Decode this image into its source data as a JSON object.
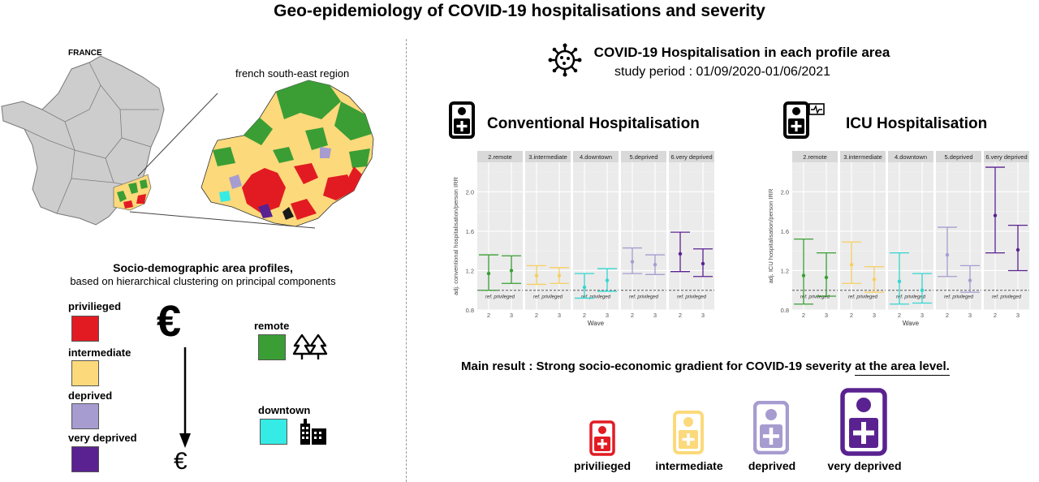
{
  "title": "Geo-epidemiology of COVID-19 hospitalisations and severity",
  "map": {
    "country_label": "FRANCE",
    "region_label": "french south-east region"
  },
  "profiles": {
    "title": "Socio-demographic area profiles,",
    "subtitle": "based on hierarchical clustering on principal components",
    "items": [
      {
        "label": "privilieged",
        "color": "#e21b23"
      },
      {
        "label": "intermediate",
        "color": "#fcd97b"
      },
      {
        "label": "deprived",
        "color": "#a79cd0"
      },
      {
        "label": "very deprived",
        "color": "#5a2290"
      },
      {
        "label": "remote",
        "color": "#3a9e35"
      },
      {
        "label": "downtown",
        "color": "#34ece5"
      }
    ],
    "euro_symbol": "€"
  },
  "hospitalisation": {
    "title": "COVID-19 Hospitalisation in each profile area",
    "period": "study period : 01/09/2020-01/06/2021"
  },
  "chart_data": [
    {
      "type": "scatter",
      "title": "Conventional Hospitalisation",
      "ylabel": "adj. conventional hospitalisation/person IRR",
      "xlabel": "Wave",
      "ylim": [
        0.8,
        2.3
      ],
      "yticks": [
        0.8,
        1.2,
        1.6,
        2.0
      ],
      "reference_line": 1.0,
      "reference_label": "ref. privileged",
      "facets": [
        {
          "name": "2.remote",
          "color": "#3a9e35",
          "points": [
            {
              "x": "2",
              "y": 1.17,
              "low": 1.0,
              "high": 1.36
            },
            {
              "x": "3",
              "y": 1.2,
              "low": 1.07,
              "high": 1.35
            }
          ]
        },
        {
          "name": "3.intermediate",
          "color": "#f7cf5e",
          "points": [
            {
              "x": "2",
              "y": 1.15,
              "low": 1.06,
              "high": 1.25
            },
            {
              "x": "3",
              "y": 1.15,
              "low": 1.07,
              "high": 1.23
            }
          ]
        },
        {
          "name": "4.downtown",
          "color": "#33d6d0",
          "points": [
            {
              "x": "2",
              "y": 1.03,
              "low": 0.92,
              "high": 1.17
            },
            {
              "x": "3",
              "y": 1.1,
              "low": 0.99,
              "high": 1.22
            }
          ]
        },
        {
          "name": "5.deprived",
          "color": "#a79cd0",
          "points": [
            {
              "x": "2",
              "y": 1.29,
              "low": 1.17,
              "high": 1.43
            },
            {
              "x": "3",
              "y": 1.26,
              "low": 1.16,
              "high": 1.36
            }
          ]
        },
        {
          "name": "6.very deprived",
          "color": "#5a2290",
          "points": [
            {
              "x": "2",
              "y": 1.37,
              "low": 1.19,
              "high": 1.59
            },
            {
              "x": "3",
              "y": 1.27,
              "low": 1.14,
              "high": 1.42
            }
          ]
        }
      ]
    },
    {
      "type": "scatter",
      "title": "ICU Hospitalisation",
      "ylabel": "adj. ICU hospitalisation/person IRR",
      "xlabel": "Wave",
      "ylim": [
        0.8,
        2.3
      ],
      "yticks": [
        0.8,
        1.2,
        1.6,
        2.0
      ],
      "reference_line": 1.0,
      "reference_label": "ref. privileged",
      "facets": [
        {
          "name": "2.remote",
          "color": "#3a9e35",
          "points": [
            {
              "x": "2",
              "y": 1.15,
              "low": 0.86,
              "high": 1.52
            },
            {
              "x": "3",
              "y": 1.13,
              "low": 0.94,
              "high": 1.38
            }
          ]
        },
        {
          "name": "3.intermediate",
          "color": "#f7cf5e",
          "points": [
            {
              "x": "2",
              "y": 1.26,
              "low": 1.07,
              "high": 1.49
            },
            {
              "x": "3",
              "y": 1.11,
              "low": 0.98,
              "high": 1.24
            }
          ]
        },
        {
          "name": "4.downtown",
          "color": "#33d6d0",
          "points": [
            {
              "x": "2",
              "y": 1.09,
              "low": 0.86,
              "high": 1.38
            },
            {
              "x": "3",
              "y": 1.0,
              "low": 0.87,
              "high": 1.17
            }
          ]
        },
        {
          "name": "5.deprived",
          "color": "#a79cd0",
          "points": [
            {
              "x": "2",
              "y": 1.36,
              "low": 1.14,
              "high": 1.64
            },
            {
              "x": "3",
              "y": 1.1,
              "low": 0.98,
              "high": 1.25
            }
          ]
        },
        {
          "name": "6.very deprived",
          "color": "#5a2290",
          "points": [
            {
              "x": "2",
              "y": 1.76,
              "low": 1.38,
              "high": 2.25
            },
            {
              "x": "3",
              "y": 1.41,
              "low": 1.2,
              "high": 1.66
            }
          ]
        }
      ]
    }
  ],
  "main_result": {
    "prefix": "Main result : Strong socio-economic gradient for COVID-19 severity ",
    "underlined": "at the area level."
  },
  "severity_scale": [
    {
      "label": "privilieged",
      "color": "#e21b23"
    },
    {
      "label": "intermediate",
      "color": "#fcd97b"
    },
    {
      "label": "deprived",
      "color": "#a79cd0"
    },
    {
      "label": "very deprived",
      "color": "#5a2290"
    }
  ]
}
